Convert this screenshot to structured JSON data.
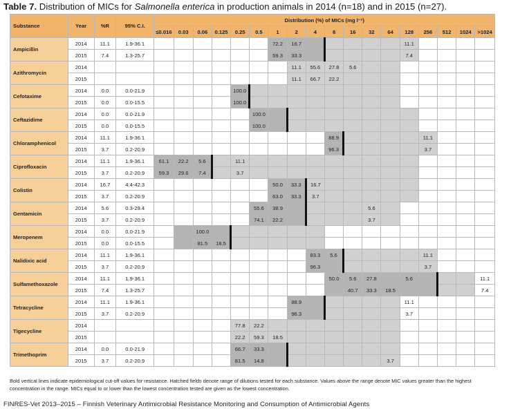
{
  "title": {
    "label": "Table 7.",
    "pre": " Distribution of MICs for ",
    "species": "Salmonella enterica",
    "post": " in production animals in 2014 (n=18) and in 2015 (n=27)."
  },
  "headers": {
    "substance": "Substance",
    "year": "Year",
    "pr": "%R",
    "ci": "95% C.I.",
    "distribution": "Distribution (%) of MICs (mg l⁻¹)",
    "dilutions": [
      "≤0.016",
      "0.03",
      "0.06",
      "0.125",
      "0.25",
      "0.5",
      "1",
      "2",
      "4",
      "8",
      "16",
      "32",
      "64",
      "128",
      "256",
      "512",
      "1024",
      ">1024"
    ]
  },
  "substances": [
    {
      "name": "Ampicillin",
      "range": [
        6,
        13
      ],
      "cutoff": 9,
      "rows": [
        {
          "year": "2014",
          "pr": "11.1",
          "ci": "1.9-36.1",
          "vals": {
            "6": "72.2",
            "7": "16.7",
            "13": "11.1"
          }
        },
        {
          "year": "2015",
          "pr": "7.4",
          "ci": "1.3-25.7",
          "vals": {
            "6": "59.3",
            "7": "33.3",
            "13": "7.4"
          }
        }
      ]
    },
    {
      "name": "Azithromycin",
      "range": [
        7,
        12
      ],
      "cutoff": null,
      "rows": [
        {
          "year": "2014",
          "pr": "",
          "ci": "",
          "vals": {
            "7": "11.1",
            "8": "55.6",
            "9": "27.8",
            "10": "5.6"
          }
        },
        {
          "year": "2015",
          "pr": "",
          "ci": "",
          "vals": {
            "7": "11.1",
            "8": "66.7",
            "9": "22.2"
          }
        }
      ]
    },
    {
      "name": "Cefotaxime",
      "range": [
        4,
        12
      ],
      "cutoff": 5,
      "rows": [
        {
          "year": "2014",
          "pr": "0.0",
          "ci": "0.0-21.9",
          "vals": {
            "4": "100.0"
          }
        },
        {
          "year": "2015",
          "pr": "0.0",
          "ci": "0.0-15.5",
          "vals": {
            "4": "100.0"
          }
        }
      ]
    },
    {
      "name": "Ceftazidime",
      "range": [
        5,
        13
      ],
      "cutoff": 7,
      "rows": [
        {
          "year": "2014",
          "pr": "0.0",
          "ci": "0.0-21.9",
          "vals": {
            "5": "100.0"
          }
        },
        {
          "year": "2015",
          "pr": "0.0",
          "ci": "0.0-15.5",
          "vals": {
            "5": "100.0"
          }
        }
      ]
    },
    {
      "name": "Chloramphenicol",
      "range": [
        9,
        14
      ],
      "cutoff": 10,
      "rows": [
        {
          "year": "2014",
          "pr": "11.1",
          "ci": "1.9-36.1",
          "vals": {
            "9": "88.9",
            "14": "11.1"
          }
        },
        {
          "year": "2015",
          "pr": "3.7",
          "ci": "0.2-20.9",
          "vals": {
            "9": "96.3",
            "14": "3.7"
          }
        }
      ]
    },
    {
      "name": "Ciprofloxacin",
      "range": [
        0,
        13
      ],
      "cutoff": 3,
      "rows": [
        {
          "year": "2014",
          "pr": "11.1",
          "ci": "1.9-36.1",
          "vals": {
            "0": "61.1",
            "1": "22.2",
            "2": "5.6",
            "4": "11.1"
          }
        },
        {
          "year": "2015",
          "pr": "3.7",
          "ci": "0.2-20.9",
          "vals": {
            "0": "59.3",
            "1": "29.6",
            "2": "7.4",
            "4": "3.7"
          }
        }
      ]
    },
    {
      "name": "Colistin",
      "range": [
        6,
        13
      ],
      "cutoff": 8,
      "rows": [
        {
          "year": "2014",
          "pr": "16.7",
          "ci": "4.4-42.3",
          "vals": {
            "6": "50.0",
            "7": "33.3",
            "8": "16.7"
          }
        },
        {
          "year": "2015",
          "pr": "3.7",
          "ci": "0.2-20.9",
          "vals": {
            "6": "63.0",
            "7": "33.3",
            "8": "3.7"
          }
        }
      ]
    },
    {
      "name": "Gentamicin",
      "range": [
        5,
        12
      ],
      "cutoff": 8,
      "rows": [
        {
          "year": "2014",
          "pr": "5.6",
          "ci": "0.3-29.4",
          "vals": {
            "5": "55.6",
            "6": "38.9",
            "11": "5.6"
          }
        },
        {
          "year": "2015",
          "pr": "3.7",
          "ci": "0.2-20.9",
          "vals": {
            "5": "74.1",
            "6": "22.2",
            "11": "3.7"
          }
        }
      ]
    },
    {
      "name": "Meropenem",
      "range": [
        1,
        8
      ],
      "cutoff": 4,
      "rows": [
        {
          "year": "2014",
          "pr": "0.0",
          "ci": "0.0-21.9",
          "vals": {
            "2": "100.0"
          }
        },
        {
          "year": "2015",
          "pr": "0.0",
          "ci": "0.0-15.5",
          "vals": {
            "2": "81.5",
            "3": "18.5"
          }
        }
      ]
    },
    {
      "name": "Nalidixic acid",
      "range": [
        8,
        14
      ],
      "cutoff": 10,
      "rows": [
        {
          "year": "2014",
          "pr": "11.1",
          "ci": "1.9-36.1",
          "vals": {
            "8": "83.3",
            "9": "5.6",
            "14": "11.1"
          }
        },
        {
          "year": "2015",
          "pr": "3.7",
          "ci": "0.2-20.9",
          "vals": {
            "8": "96.3",
            "14": "3.7"
          }
        }
      ]
    },
    {
      "name": "Sulfamethoxazole",
      "range": [
        9,
        16
      ],
      "cutoff": 15,
      "rows": [
        {
          "year": "2014",
          "pr": "11.1",
          "ci": "1.9-36.1",
          "vals": {
            "9": "50.0",
            "10": "5.6",
            "11": "27.8",
            "13": "5.6",
            "17": "11.1"
          }
        },
        {
          "year": "2015",
          "pr": "7.4",
          "ci": "1.3-25.7",
          "vals": {
            "10": "40.7",
            "11": "33.3",
            "12": "18.5",
            "17": "7.4"
          }
        }
      ]
    },
    {
      "name": "Tetracycline",
      "range": [
        7,
        12
      ],
      "cutoff": 9,
      "rows": [
        {
          "year": "2014",
          "pr": "11.1",
          "ci": "1.9-36.1",
          "vals": {
            "7": "88.9",
            "13": "11.1"
          }
        },
        {
          "year": "2015",
          "pr": "3.7",
          "ci": "0.2-20.9",
          "vals": {
            "7": "96.3",
            "13": "3.7"
          }
        }
      ]
    },
    {
      "name": "Tigecycline",
      "range": [
        4,
        12
      ],
      "cutoff": null,
      "rows": [
        {
          "year": "2014",
          "pr": "",
          "ci": "",
          "vals": {
            "4": "77.8",
            "5": "22.2"
          }
        },
        {
          "year": "2015",
          "pr": "",
          "ci": "",
          "vals": {
            "4": "22.2",
            "5": "59.3",
            "6": "18.5"
          }
        }
      ]
    },
    {
      "name": "Trimethoprim",
      "range": [
        4,
        12
      ],
      "cutoff": 7,
      "rows": [
        {
          "year": "2014",
          "pr": "0.0",
          "ci": "0.0-21.9",
          "vals": {
            "4": "66.7",
            "5": "33.3"
          }
        },
        {
          "year": "2015",
          "pr": "3.7",
          "ci": "0.2-20.9",
          "vals": {
            "4": "81.5",
            "5": "14.8",
            "12": "3.7"
          }
        }
      ]
    }
  ],
  "footnote": "Bold vertical lines indicate epidemiological cut-off values for resistance. Hatched fields denote range of dilutions tested for each substance. Values above the range denote MIC values greater than the highest concentration in the range. MICs equal to or lower than the lowest concentration tested are given as the lowest concentration.",
  "footer": "FINRES-Vet 2013–2015 – Finnish Veterinary Antimicrobial Resistance Monitoring and Consumption of Antimicrobial Agents"
}
